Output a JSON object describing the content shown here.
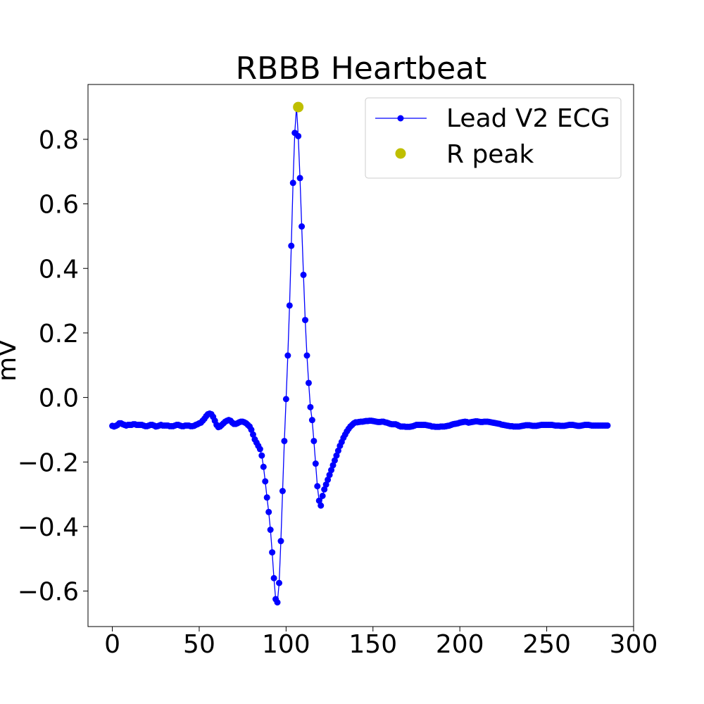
{
  "chart_data": {
    "type": "line",
    "title": "RBBB Heartbeat",
    "xlabel": "",
    "ylabel": "mV",
    "xlim": [
      -14,
      300
    ],
    "ylim": [
      -0.71,
      0.97
    ],
    "x_ticks": [
      0,
      50,
      100,
      150,
      200,
      250,
      300
    ],
    "x_tick_labels": [
      "0",
      "50",
      "100",
      "150",
      "200",
      "250",
      "300"
    ],
    "y_ticks": [
      -0.6,
      -0.4,
      -0.2,
      0.0,
      0.2,
      0.4,
      0.6,
      0.8
    ],
    "y_tick_labels": [
      "−0.6",
      "−0.4",
      "−0.2",
      "0.0",
      "0.2",
      "0.4",
      "0.6",
      "0.8"
    ],
    "grid": false,
    "legend": {
      "placement": "upper right",
      "entries": [
        {
          "label": "Lead V2 ECG",
          "color": "#0000ff",
          "marker": "line-dot"
        },
        {
          "label": "R peak",
          "color": "#bfbf00",
          "marker": "dot"
        }
      ]
    },
    "series": [
      {
        "name": "Lead V2 ECG",
        "color": "#0000ff",
        "y": [
          -0.088,
          -0.09,
          -0.088,
          -0.085,
          -0.08,
          -0.08,
          -0.083,
          -0.085,
          -0.087,
          -0.085,
          -0.085,
          -0.085,
          -0.083,
          -0.083,
          -0.085,
          -0.085,
          -0.085,
          -0.085,
          -0.087,
          -0.089,
          -0.089,
          -0.087,
          -0.085,
          -0.085,
          -0.087,
          -0.09,
          -0.089,
          -0.087,
          -0.085,
          -0.087,
          -0.087,
          -0.087,
          -0.087,
          -0.089,
          -0.089,
          -0.089,
          -0.087,
          -0.085,
          -0.085,
          -0.087,
          -0.089,
          -0.089,
          -0.087,
          -0.087,
          -0.087,
          -0.089,
          -0.089,
          -0.088,
          -0.085,
          -0.083,
          -0.08,
          -0.078,
          -0.072,
          -0.066,
          -0.058,
          -0.052,
          -0.05,
          -0.052,
          -0.06,
          -0.072,
          -0.085,
          -0.092,
          -0.09,
          -0.085,
          -0.08,
          -0.075,
          -0.072,
          -0.07,
          -0.072,
          -0.078,
          -0.082,
          -0.082,
          -0.08,
          -0.077,
          -0.075,
          -0.075,
          -0.077,
          -0.08,
          -0.085,
          -0.09,
          -0.1,
          -0.115,
          -0.13,
          -0.14,
          -0.15,
          -0.16,
          -0.18,
          -0.215,
          -0.26,
          -0.31,
          -0.355,
          -0.41,
          -0.48,
          -0.56,
          -0.625,
          -0.635,
          -0.575,
          -0.445,
          -0.29,
          -0.135,
          -0.005,
          0.13,
          0.285,
          0.47,
          0.665,
          0.82,
          0.9,
          0.81,
          0.68,
          0.53,
          0.38,
          0.24,
          0.13,
          0.045,
          -0.03,
          -0.07,
          -0.135,
          -0.205,
          -0.275,
          -0.32,
          -0.335,
          -0.305,
          -0.285,
          -0.27,
          -0.255,
          -0.24,
          -0.225,
          -0.21,
          -0.195,
          -0.18,
          -0.165,
          -0.15,
          -0.138,
          -0.125,
          -0.115,
          -0.105,
          -0.097,
          -0.09,
          -0.085,
          -0.08,
          -0.077,
          -0.077,
          -0.076,
          -0.075,
          -0.075,
          -0.074,
          -0.073,
          -0.073,
          -0.072,
          -0.072,
          -0.073,
          -0.074,
          -0.075,
          -0.076,
          -0.076,
          -0.075,
          -0.075,
          -0.077,
          -0.078,
          -0.08,
          -0.082,
          -0.083,
          -0.083,
          -0.083,
          -0.085,
          -0.088,
          -0.09,
          -0.09,
          -0.09,
          -0.091,
          -0.091,
          -0.091,
          -0.09,
          -0.089,
          -0.087,
          -0.085,
          -0.085,
          -0.085,
          -0.085,
          -0.085,
          -0.085,
          -0.086,
          -0.087,
          -0.088,
          -0.09,
          -0.09,
          -0.091,
          -0.091,
          -0.091,
          -0.09,
          -0.09,
          -0.09,
          -0.089,
          -0.088,
          -0.087,
          -0.085,
          -0.083,
          -0.082,
          -0.081,
          -0.08,
          -0.078,
          -0.077,
          -0.076,
          -0.075,
          -0.076,
          -0.078,
          -0.077,
          -0.076,
          -0.075,
          -0.074,
          -0.074,
          -0.075,
          -0.076,
          -0.076,
          -0.075,
          -0.075,
          -0.075,
          -0.076,
          -0.077,
          -0.078,
          -0.079,
          -0.08,
          -0.081,
          -0.082,
          -0.084,
          -0.085,
          -0.086,
          -0.087,
          -0.088,
          -0.089,
          -0.089,
          -0.09,
          -0.09,
          -0.09,
          -0.09,
          -0.089,
          -0.088,
          -0.087,
          -0.086,
          -0.086,
          -0.086,
          -0.087,
          -0.088,
          -0.088,
          -0.088,
          -0.087,
          -0.086,
          -0.085,
          -0.085,
          -0.085,
          -0.085,
          -0.085,
          -0.085,
          -0.085,
          -0.086,
          -0.087,
          -0.087,
          -0.087,
          -0.088,
          -0.088,
          -0.088,
          -0.087,
          -0.086,
          -0.085,
          -0.085,
          -0.085,
          -0.086,
          -0.087,
          -0.088,
          -0.088,
          -0.087,
          -0.086,
          -0.085,
          -0.085,
          -0.085,
          -0.086,
          -0.087,
          -0.087,
          -0.087,
          -0.087,
          -0.087,
          -0.087,
          -0.087,
          -0.087,
          -0.087,
          -0.087
        ]
      },
      {
        "name": "R peak",
        "color": "#bfbf00",
        "x": [
          107
        ],
        "y": [
          0.9
        ]
      }
    ]
  }
}
